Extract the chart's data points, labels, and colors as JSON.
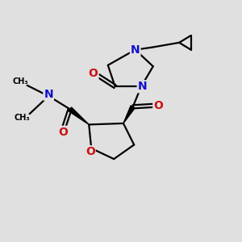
{
  "bg_color": "#e0e0e0",
  "atom_colors": {
    "N": "#1010cc",
    "O": "#cc1010"
  },
  "bond_color": "#000000",
  "bond_width": 1.6,
  "fig_size": [
    3.0,
    3.0
  ],
  "dpi": 100,
  "xlim": [
    0,
    10
  ],
  "ylim": [
    0,
    10
  ]
}
